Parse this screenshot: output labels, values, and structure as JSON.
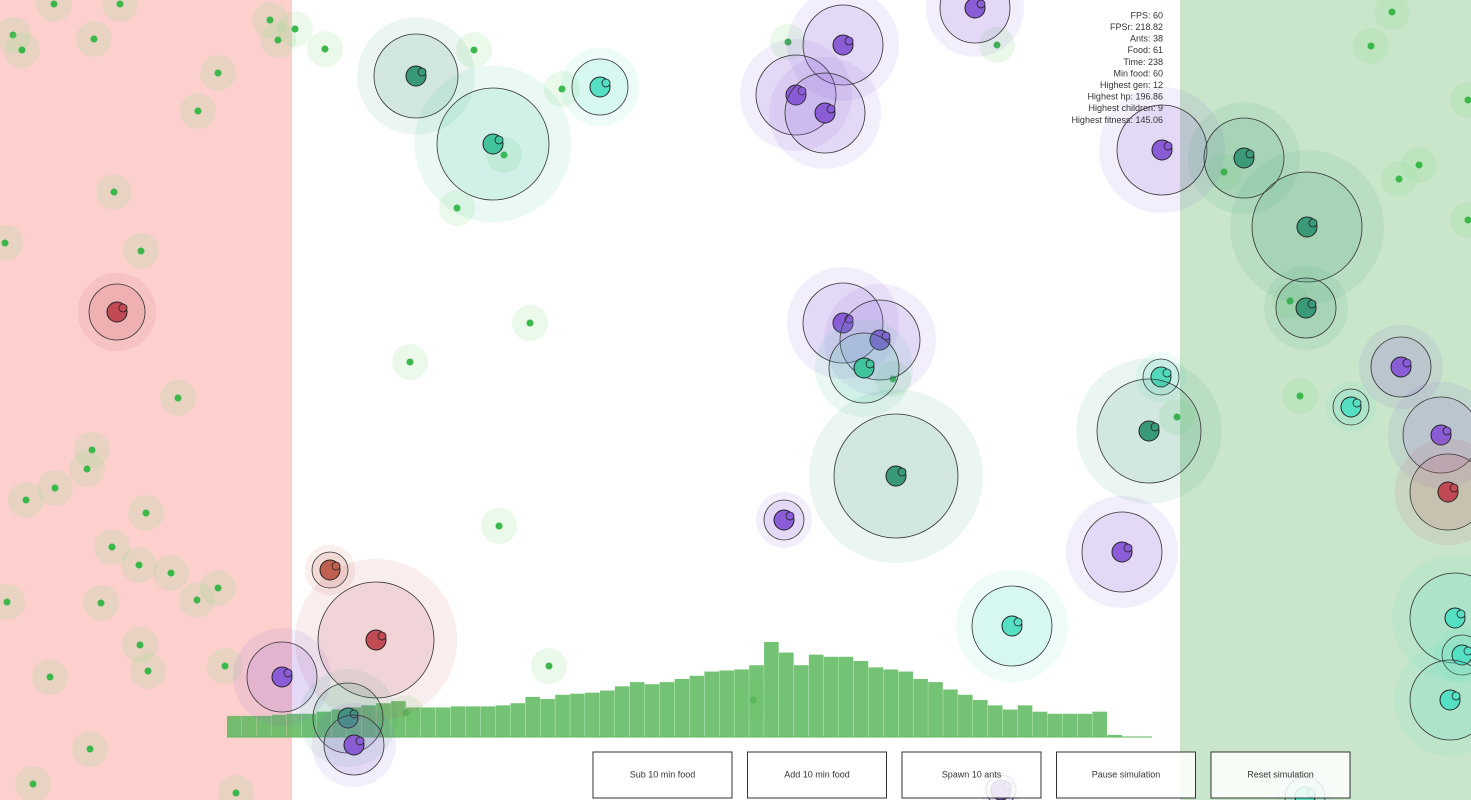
{
  "stats": [
    "FPS: 60",
    "FPSr: 218.82",
    "Ants: 38",
    "Food: 61",
    "Time: 238",
    "Min food: 60",
    "Highest gen: 12",
    "Highest hp: 196.86",
    "Highest children: 9",
    "Highest fitness: 145.06"
  ],
  "history": {
    "values": [
      20,
      20,
      20,
      21,
      22,
      22,
      24,
      26,
      28,
      30,
      32,
      34,
      28,
      28,
      28,
      29,
      29,
      29,
      30,
      32,
      38,
      36,
      40,
      41,
      42,
      44,
      48,
      52,
      50,
      52,
      55,
      58,
      62,
      63,
      64,
      68,
      90,
      80,
      68,
      78,
      76,
      76,
      72,
      66,
      64,
      62,
      55,
      52,
      45,
      40,
      35,
      30,
      26,
      30,
      24,
      22,
      22,
      22,
      24,
      2,
      0,
      0
    ],
    "color": "#5cb85c"
  },
  "buttons": [
    "Sub 10 min food",
    "Add 10 min food",
    "Spawn 10 ants",
    "Pause simulation",
    "Reset simulation"
  ]
}
